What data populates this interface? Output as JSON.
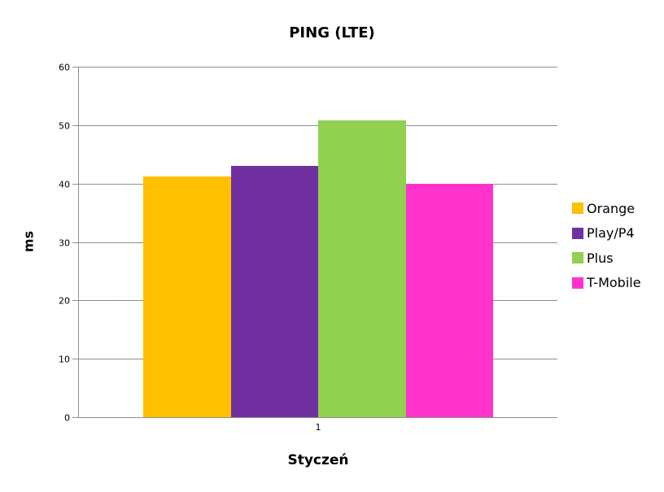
{
  "chart_data": {
    "type": "bar",
    "title": "PING (LTE)",
    "xlabel": "Styczeń",
    "ylabel": "ms",
    "categories": [
      "1"
    ],
    "series": [
      {
        "name": "Orange",
        "color": "#FFC000",
        "values": [
          41.2
        ]
      },
      {
        "name": "Play/P4",
        "color": "#7030A0",
        "values": [
          43.0
        ]
      },
      {
        "name": "Plus",
        "color": "#92D050",
        "values": [
          50.8
        ]
      },
      {
        "name": "T-Mobile",
        "color": "#FF33CC",
        "values": [
          39.9
        ]
      }
    ],
    "ylim": [
      0,
      60
    ],
    "yticks": [
      0,
      10,
      20,
      30,
      40,
      50,
      60
    ],
    "grid": true,
    "legend_position": "right",
    "gridline_color": "#8e8e8e",
    "text_color": "#000000",
    "background_color": "#ffffff"
  }
}
